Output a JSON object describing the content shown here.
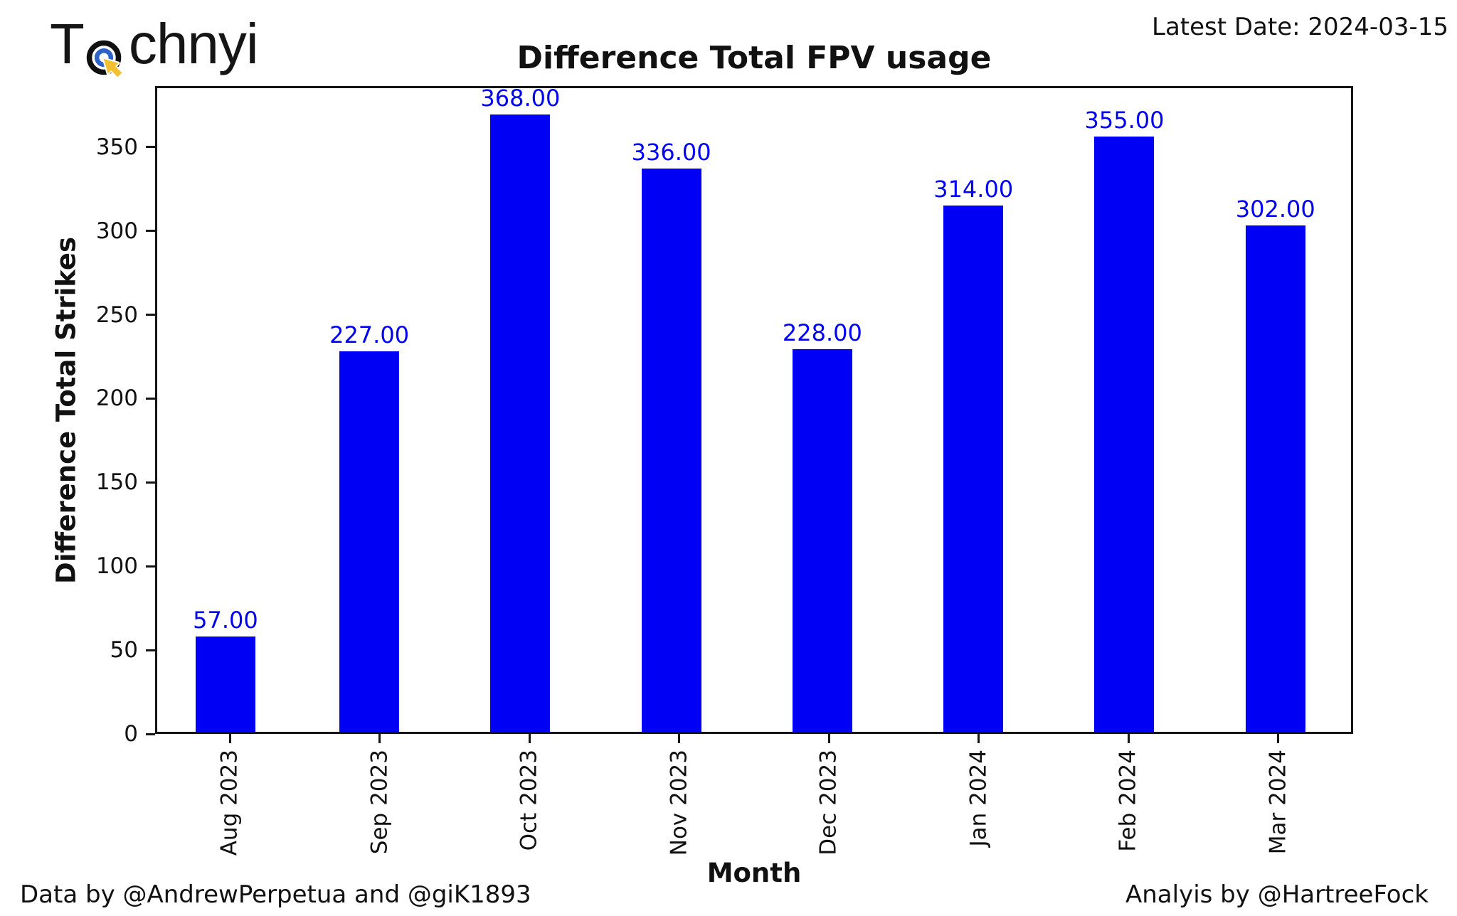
{
  "header": {
    "logo_part1": "T",
    "logo_part2": "chnyi",
    "latest_date": "Latest Date: 2024-03-15"
  },
  "chart_data": {
    "type": "bar",
    "title": "Difference Total FPV usage",
    "xlabel": "Month",
    "ylabel": "Difference Total Strikes",
    "categories": [
      "Aug 2023",
      "Sep 2023",
      "Oct 2023",
      "Nov 2023",
      "Dec 2023",
      "Jan 2024",
      "Feb 2024",
      "Mar 2024"
    ],
    "values": [
      57,
      227,
      368,
      336,
      228,
      314,
      355,
      302
    ],
    "bar_labels": [
      "57.00",
      "227.00",
      "368.00",
      "336.00",
      "228.00",
      "314.00",
      "355.00",
      "302.00"
    ],
    "y_ticks": [
      0,
      50,
      100,
      150,
      200,
      250,
      300,
      350
    ],
    "ylim": [
      0,
      386.4
    ],
    "grid": false,
    "legend_position": "none",
    "bar_color": "#0000f5",
    "value_label_color": "#0000f5",
    "axis_color": "#151515"
  },
  "logo_colors": {
    "ring_outer": "#101010",
    "ring_inner": "#2d63c8",
    "cursor": "#f3c032"
  },
  "footer": {
    "left": "Data by @AndrewPerpetua and @giK1893",
    "right": "Analyis by @HartreeFock"
  }
}
